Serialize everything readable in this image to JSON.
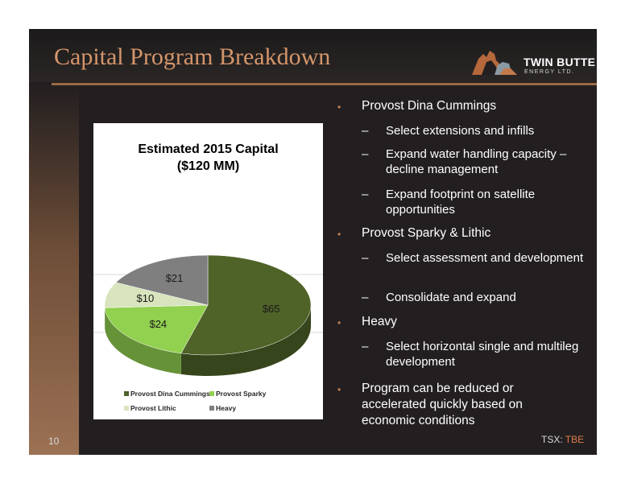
{
  "slide": {
    "title": "Capital Program Breakdown",
    "page_number": "10",
    "ticker_prefix": "TSX: ",
    "ticker_symbol": "TBE",
    "logo": {
      "name": "TWIN BUTTE",
      "sub": "ENERGY LTD."
    }
  },
  "colors": {
    "background": "#231f20",
    "title": "#d4956a",
    "accent": "#e07b4c",
    "bullet": "#c98356"
  },
  "chart_data": {
    "type": "pie",
    "title_line1": "Estimated 2015 Capital",
    "title_line2": "($120 MM)",
    "categories": [
      "Provost Dina Cummings",
      "Provost Sparky",
      "Provost Lithic",
      "Heavy"
    ],
    "values": [
      65,
      24,
      10,
      21
    ],
    "labels": [
      "$65",
      "$24",
      "$10",
      "$21"
    ],
    "colors": [
      "#4f6228",
      "#92d050",
      "#d7e4bd",
      "#7f7f7f"
    ],
    "legend_position": "bottom",
    "style": "3d"
  },
  "bullets": [
    {
      "level": 1,
      "text": "Provost Dina Cummings"
    },
    {
      "level": 2,
      "text": "Select extensions and infills"
    },
    {
      "level": 2,
      "text": "Expand water handling capacity – decline management"
    },
    {
      "level": 2,
      "text": "Expand footprint on satellite opportunities"
    },
    {
      "level": 1,
      "text": "Provost Sparky & Lithic"
    },
    {
      "level": 2,
      "text": "Select assessment and development"
    },
    {
      "level": 2,
      "text": "Consolidate and expand"
    },
    {
      "level": 1,
      "text": "Heavy"
    },
    {
      "level": 2,
      "text": "Select horizontal single and multileg development"
    },
    {
      "level": 1,
      "text": "Program can be reduced or accelerated quickly based on economic conditions"
    }
  ]
}
